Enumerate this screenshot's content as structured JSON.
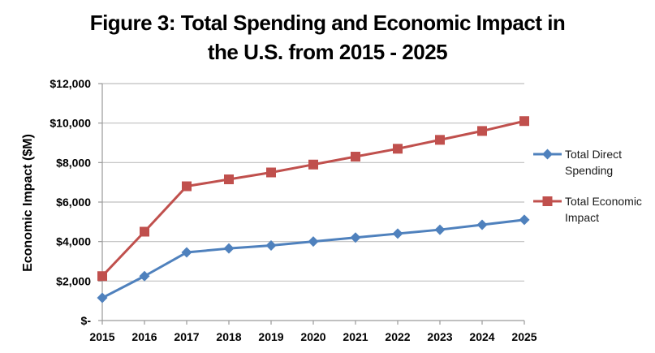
{
  "chart_data": {
    "type": "line",
    "title_lines": [
      "Figure 3: Total Spending and Economic Impact in",
      "the U.S. from 2015 - 2025"
    ],
    "title": "Figure 3: Total Spending and Economic Impact in the U.S. from 2015 - 2025",
    "xlabel": "",
    "ylabel": "Economic Impact ($M)",
    "ylim": [
      0,
      12000
    ],
    "y_ticks": [
      0,
      2000,
      4000,
      6000,
      8000,
      10000,
      12000
    ],
    "y_tick_labels": [
      "$-",
      "$2,000",
      "$4,000",
      "$6,000",
      "$8,000",
      "$10,000",
      "$12,000"
    ],
    "categories": [
      "2015",
      "2016",
      "2017",
      "2018",
      "2019",
      "2020",
      "2021",
      "2022",
      "2023",
      "2024",
      "2025"
    ],
    "grid": "horizontal",
    "legend_position": "right",
    "series": [
      {
        "name": "Total Direct Spending",
        "legend_lines": [
          "Total Direct",
          "Spending"
        ],
        "color": "#4F81BD",
        "marker": "diamond",
        "values": [
          1150,
          2250,
          3450,
          3650,
          3800,
          4000,
          4200,
          4400,
          4600,
          4850,
          5100
        ]
      },
      {
        "name": "Total Economic Impact",
        "legend_lines": [
          "Total Economic",
          "Impact"
        ],
        "color": "#C0504D",
        "marker": "square",
        "values": [
          2250,
          4500,
          6800,
          7150,
          7500,
          7900,
          8300,
          8700,
          9150,
          9600,
          10100
        ]
      }
    ]
  }
}
